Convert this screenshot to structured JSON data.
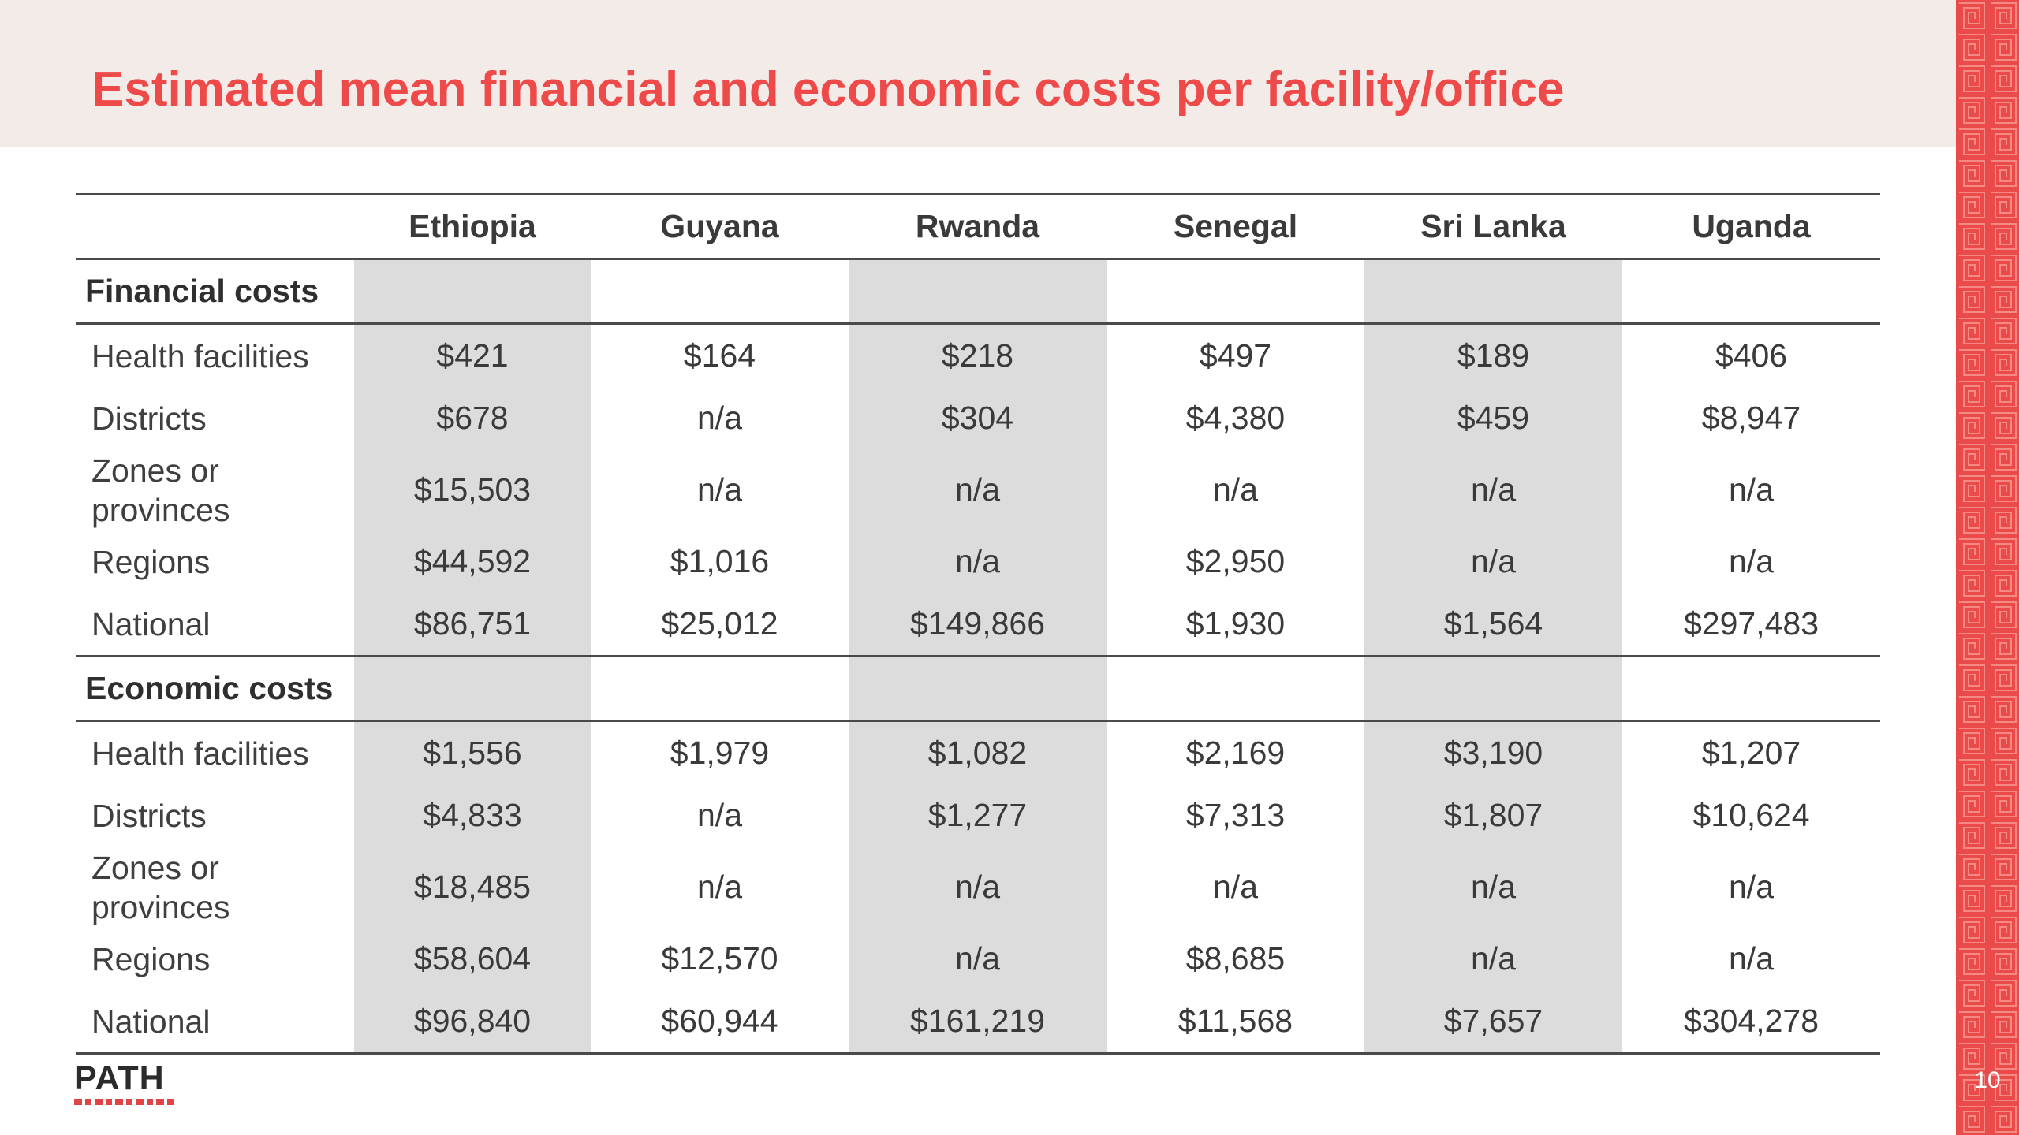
{
  "slide": {
    "title": "Estimated mean financial and economic costs per facility/office",
    "page_number": "10",
    "logo_text": "PATH",
    "accent_color": "#ee4a4a",
    "title_band_color": "#f3ebe7",
    "side_band_color": "#ea4a4a"
  },
  "table": {
    "corner": "",
    "columns": [
      "Ethiopia",
      "Guyana",
      "Rwanda",
      "Senegal",
      "Sri Lanka",
      "Uganda"
    ],
    "sections": [
      {
        "label": "Financial costs",
        "rows": [
          {
            "label": "Health facilities",
            "values": [
              "$421",
              "$164",
              "$218",
              "$497",
              "$189",
              "$406"
            ]
          },
          {
            "label": "Districts",
            "values": [
              "$678",
              "n/a",
              "$304",
              "$4,380",
              "$459",
              "$8,947"
            ]
          },
          {
            "label": "Zones or provinces",
            "values": [
              "$15,503",
              "n/a",
              "n/a",
              "n/a",
              "n/a",
              "n/a"
            ]
          },
          {
            "label": "Regions",
            "values": [
              "$44,592",
              "$1,016",
              "n/a",
              "$2,950",
              "n/a",
              "n/a"
            ]
          },
          {
            "label": "National",
            "values": [
              "$86,751",
              "$25,012",
              "$149,866",
              "$1,930",
              "$1,564",
              "$297,483"
            ]
          }
        ]
      },
      {
        "label": "Economic costs",
        "rows": [
          {
            "label": "Health facilities",
            "values": [
              "$1,556",
              "$1,979",
              "$1,082",
              "$2,169",
              "$3,190",
              "$1,207"
            ]
          },
          {
            "label": "Districts",
            "values": [
              "$4,833",
              "n/a",
              "$1,277",
              "$7,313",
              "$1,807",
              "$10,624"
            ]
          },
          {
            "label": "Zones or provinces",
            "values": [
              "$18,485",
              "n/a",
              "n/a",
              "n/a",
              "n/a",
              "n/a"
            ]
          },
          {
            "label": "Regions",
            "values": [
              "$58,604",
              "$12,570",
              "n/a",
              "$8,685",
              "n/a",
              "n/a"
            ]
          },
          {
            "label": "National",
            "values": [
              "$96,840",
              "$60,944",
              "$161,219",
              "$11,568",
              "$7,657",
              "$304,278"
            ]
          }
        ]
      }
    ]
  }
}
